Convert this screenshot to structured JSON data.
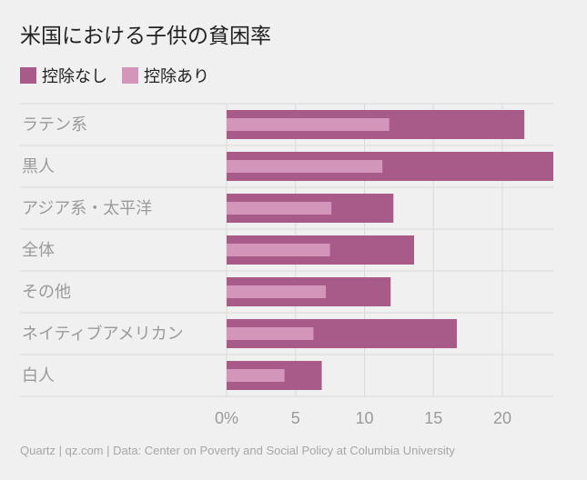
{
  "title": "米国における子供の貧困率",
  "source": "Quartz | qz.com | Data: Center on Poverty and Social Policy at Columbia University",
  "colors": {
    "series1": "#a85a89",
    "series2": "#d396ba",
    "grid": "#dadada",
    "background": "#f0f0f0"
  },
  "chart_data": {
    "type": "bar",
    "orientation": "horizontal",
    "title": "米国における子供の貧困率",
    "categories": [
      "ラテン系",
      "黒人",
      "アジア系・太平洋",
      "全体",
      "その他",
      "ネイティブアメリカン",
      "白人"
    ],
    "series": [
      {
        "name": "控除なし",
        "values": [
          21.6,
          23.7,
          12.1,
          13.6,
          11.9,
          16.7,
          6.9
        ]
      },
      {
        "name": "控除あり",
        "values": [
          11.8,
          11.3,
          7.6,
          7.5,
          7.2,
          6.3,
          4.2
        ]
      }
    ],
    "xticks": [
      "0%",
      "5",
      "10",
      "15",
      "20"
    ],
    "xlim": [
      0,
      23.7
    ],
    "legend_position": "top-left",
    "grid": true
  }
}
